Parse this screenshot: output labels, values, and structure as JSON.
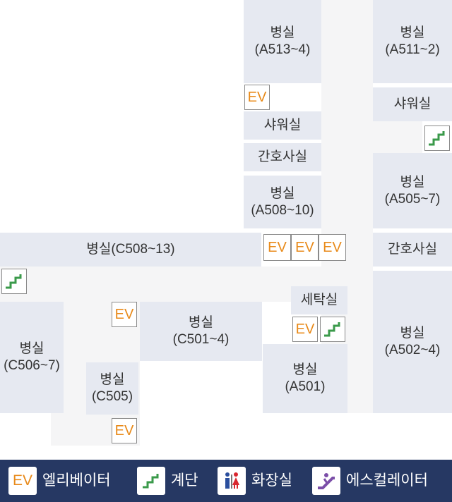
{
  "rooms": {
    "a513": {
      "name": "병실",
      "code": "(A513~4)"
    },
    "a511": {
      "name": "병실",
      "code": "(A511~2)"
    },
    "shower_center": {
      "name": "샤워실"
    },
    "shower_right": {
      "name": "샤워실"
    },
    "nurse_center": {
      "name": "간호사실"
    },
    "nurse_right": {
      "name": "간호사실"
    },
    "a508": {
      "name": "병실",
      "code": "(A508~10)"
    },
    "a505": {
      "name": "병실",
      "code": "(A505~7)"
    },
    "c508": {
      "name": "병실(C508~13)"
    },
    "laundry": {
      "name": "세탁실"
    },
    "c501": {
      "name": "병실",
      "code": "(C501~4)"
    },
    "a502": {
      "name": "병실",
      "code": "(A502~4)"
    },
    "c506": {
      "name": "병실",
      "code": "(C506~7)"
    },
    "c505": {
      "name": "병실",
      "code": "(C505)"
    },
    "a501": {
      "name": "병실",
      "code": "(A501)"
    }
  },
  "elevator_label": "EV",
  "icons": {
    "elevator": "elevator-icon",
    "stairs": "stairs-icon",
    "restroom": "restroom-icon",
    "escalator": "escalator-icon"
  },
  "legend": {
    "elevator_label": "엘리베이터",
    "stairs_label": "계단",
    "restroom_label": "화장실",
    "escalator_label": "에스컬레이터"
  },
  "colors": {
    "room": "#e6e9f1",
    "corridor": "#f5f5f6",
    "elevator_text": "#e88a1a",
    "stairs": "#3a9a4a",
    "legend_bg": "#263863",
    "restroom_male": "#2b4f9e",
    "restroom_female": "#d9262e",
    "escalator": "#7b4ea8"
  }
}
